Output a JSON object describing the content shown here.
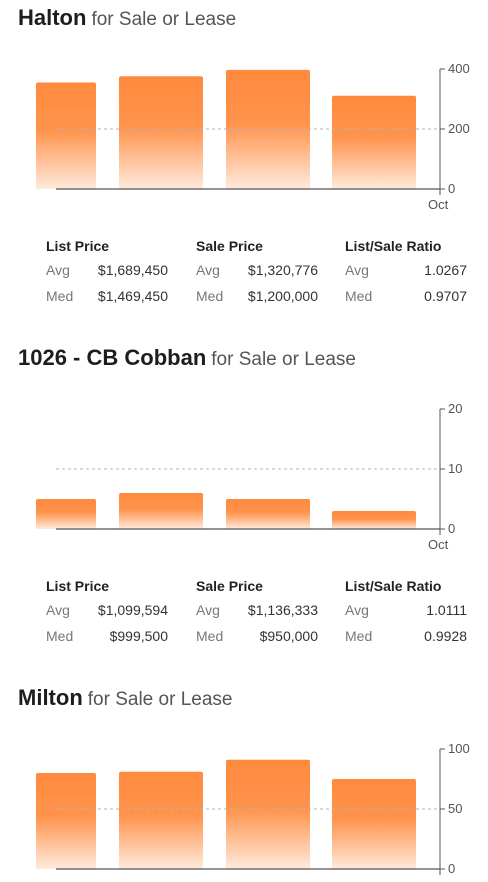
{
  "sections": [
    {
      "name": "Halton",
      "suffix": "for Sale or Lease",
      "stats": {
        "list_price": {
          "label": "List Price",
          "avg_label": "Avg",
          "avg": "$1,689,450",
          "med_label": "Med",
          "med": "$1,469,450"
        },
        "sale_price": {
          "label": "Sale Price",
          "avg_label": "Avg",
          "avg": "$1,320,776",
          "med_label": "Med",
          "med": "$1,200,000"
        },
        "ratio": {
          "label": "List/Sale Ratio",
          "avg_label": "Avg",
          "avg": "1.0267",
          "med_label": "Med",
          "med": "0.9707"
        }
      }
    },
    {
      "name": "1026 - CB Cobban",
      "suffix": "for Sale or Lease",
      "stats": {
        "list_price": {
          "label": "List Price",
          "avg_label": "Avg",
          "avg": "$1,099,594",
          "med_label": "Med",
          "med": "$999,500"
        },
        "sale_price": {
          "label": "Sale Price",
          "avg_label": "Avg",
          "avg": "$1,136,333",
          "med_label": "Med",
          "med": "$950,000"
        },
        "ratio": {
          "label": "List/Sale Ratio",
          "avg_label": "Avg",
          "avg": "1.0111",
          "med_label": "Med",
          "med": "0.9928"
        }
      }
    },
    {
      "name": "Milton",
      "suffix": "for Sale or Lease",
      "stats": null
    }
  ],
  "chart_data": [
    {
      "type": "bar",
      "categories": [
        "",
        "",
        "",
        ""
      ],
      "values": [
        355,
        376,
        397,
        311
      ],
      "ylim": [
        0,
        400
      ],
      "yticks": [
        "0",
        "200",
        "400"
      ],
      "xtick": "Oct",
      "grid": "dashed midline",
      "color": "#ff8a3d"
    },
    {
      "type": "bar",
      "categories": [
        "",
        "",
        "",
        ""
      ],
      "values": [
        5,
        6,
        5,
        3
      ],
      "ylim": [
        0,
        20
      ],
      "yticks": [
        "0",
        "10",
        "20"
      ],
      "xtick": "Oct",
      "grid": "dashed midline",
      "color": "#ff8a3d"
    },
    {
      "type": "bar",
      "categories": [
        "",
        "",
        "",
        ""
      ],
      "values": [
        80,
        81,
        91,
        75
      ],
      "ylim": [
        0,
        100
      ],
      "yticks": [
        "0",
        "50",
        "100"
      ],
      "xtick": "",
      "grid": "dashed midline",
      "color": "#ff8a3d"
    }
  ]
}
